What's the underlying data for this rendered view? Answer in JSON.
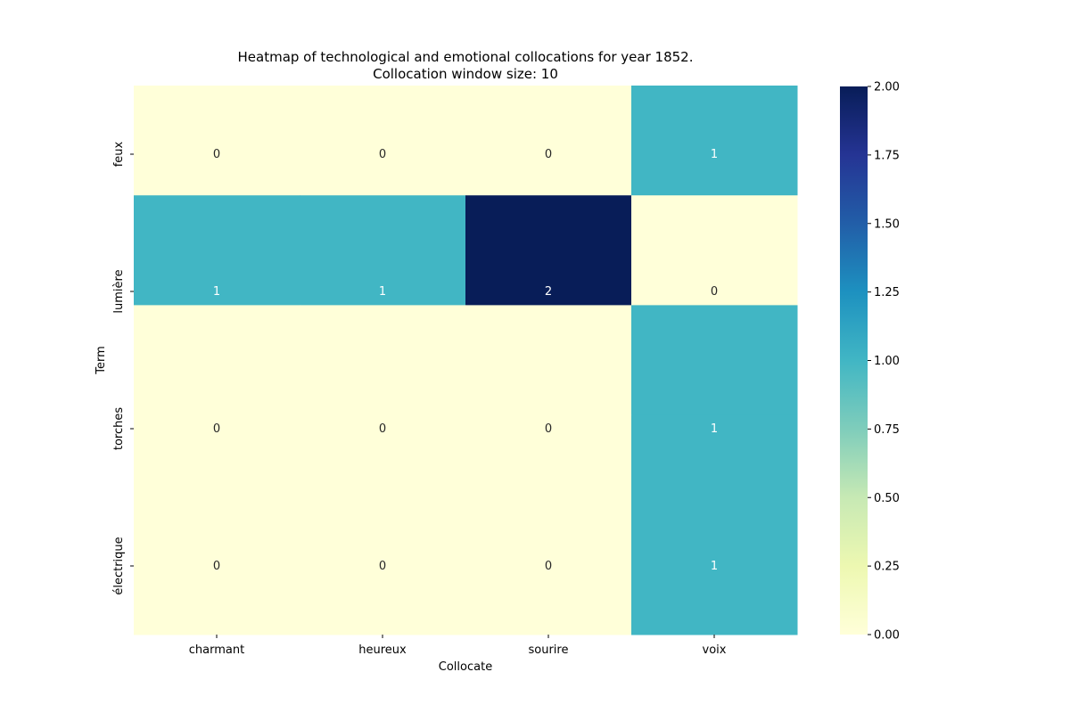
{
  "chart_data": {
    "type": "heatmap",
    "title_line1": "Heatmap of technological and emotional collocations for year 1852.",
    "title_line2": "Collocation window size: 10",
    "xlabel": "Collocate",
    "ylabel": "Term",
    "x_categories": [
      "charmant",
      "heureux",
      "sourire",
      "voix"
    ],
    "y_categories": [
      "feux",
      "lumière",
      "torches",
      "électrique"
    ],
    "values": [
      [
        0,
        0,
        0,
        1
      ],
      [
        1,
        1,
        2,
        0
      ],
      [
        0,
        0,
        0,
        1
      ],
      [
        0,
        0,
        0,
        1
      ]
    ],
    "colorbar": {
      "range": [
        0,
        2
      ],
      "ticks": [
        "0.00",
        "0.25",
        "0.50",
        "0.75",
        "1.00",
        "1.25",
        "1.50",
        "1.75",
        "2.00"
      ],
      "colormap": "YlGnBu",
      "stops": [
        "#ffffd9",
        "#edf8b1",
        "#c7e9b4",
        "#7fcdbb",
        "#41b6c4",
        "#1d91c0",
        "#225ea8",
        "#253494",
        "#081d58"
      ]
    },
    "row_heights_relative": [
      1,
      1,
      1,
      2
    ]
  }
}
